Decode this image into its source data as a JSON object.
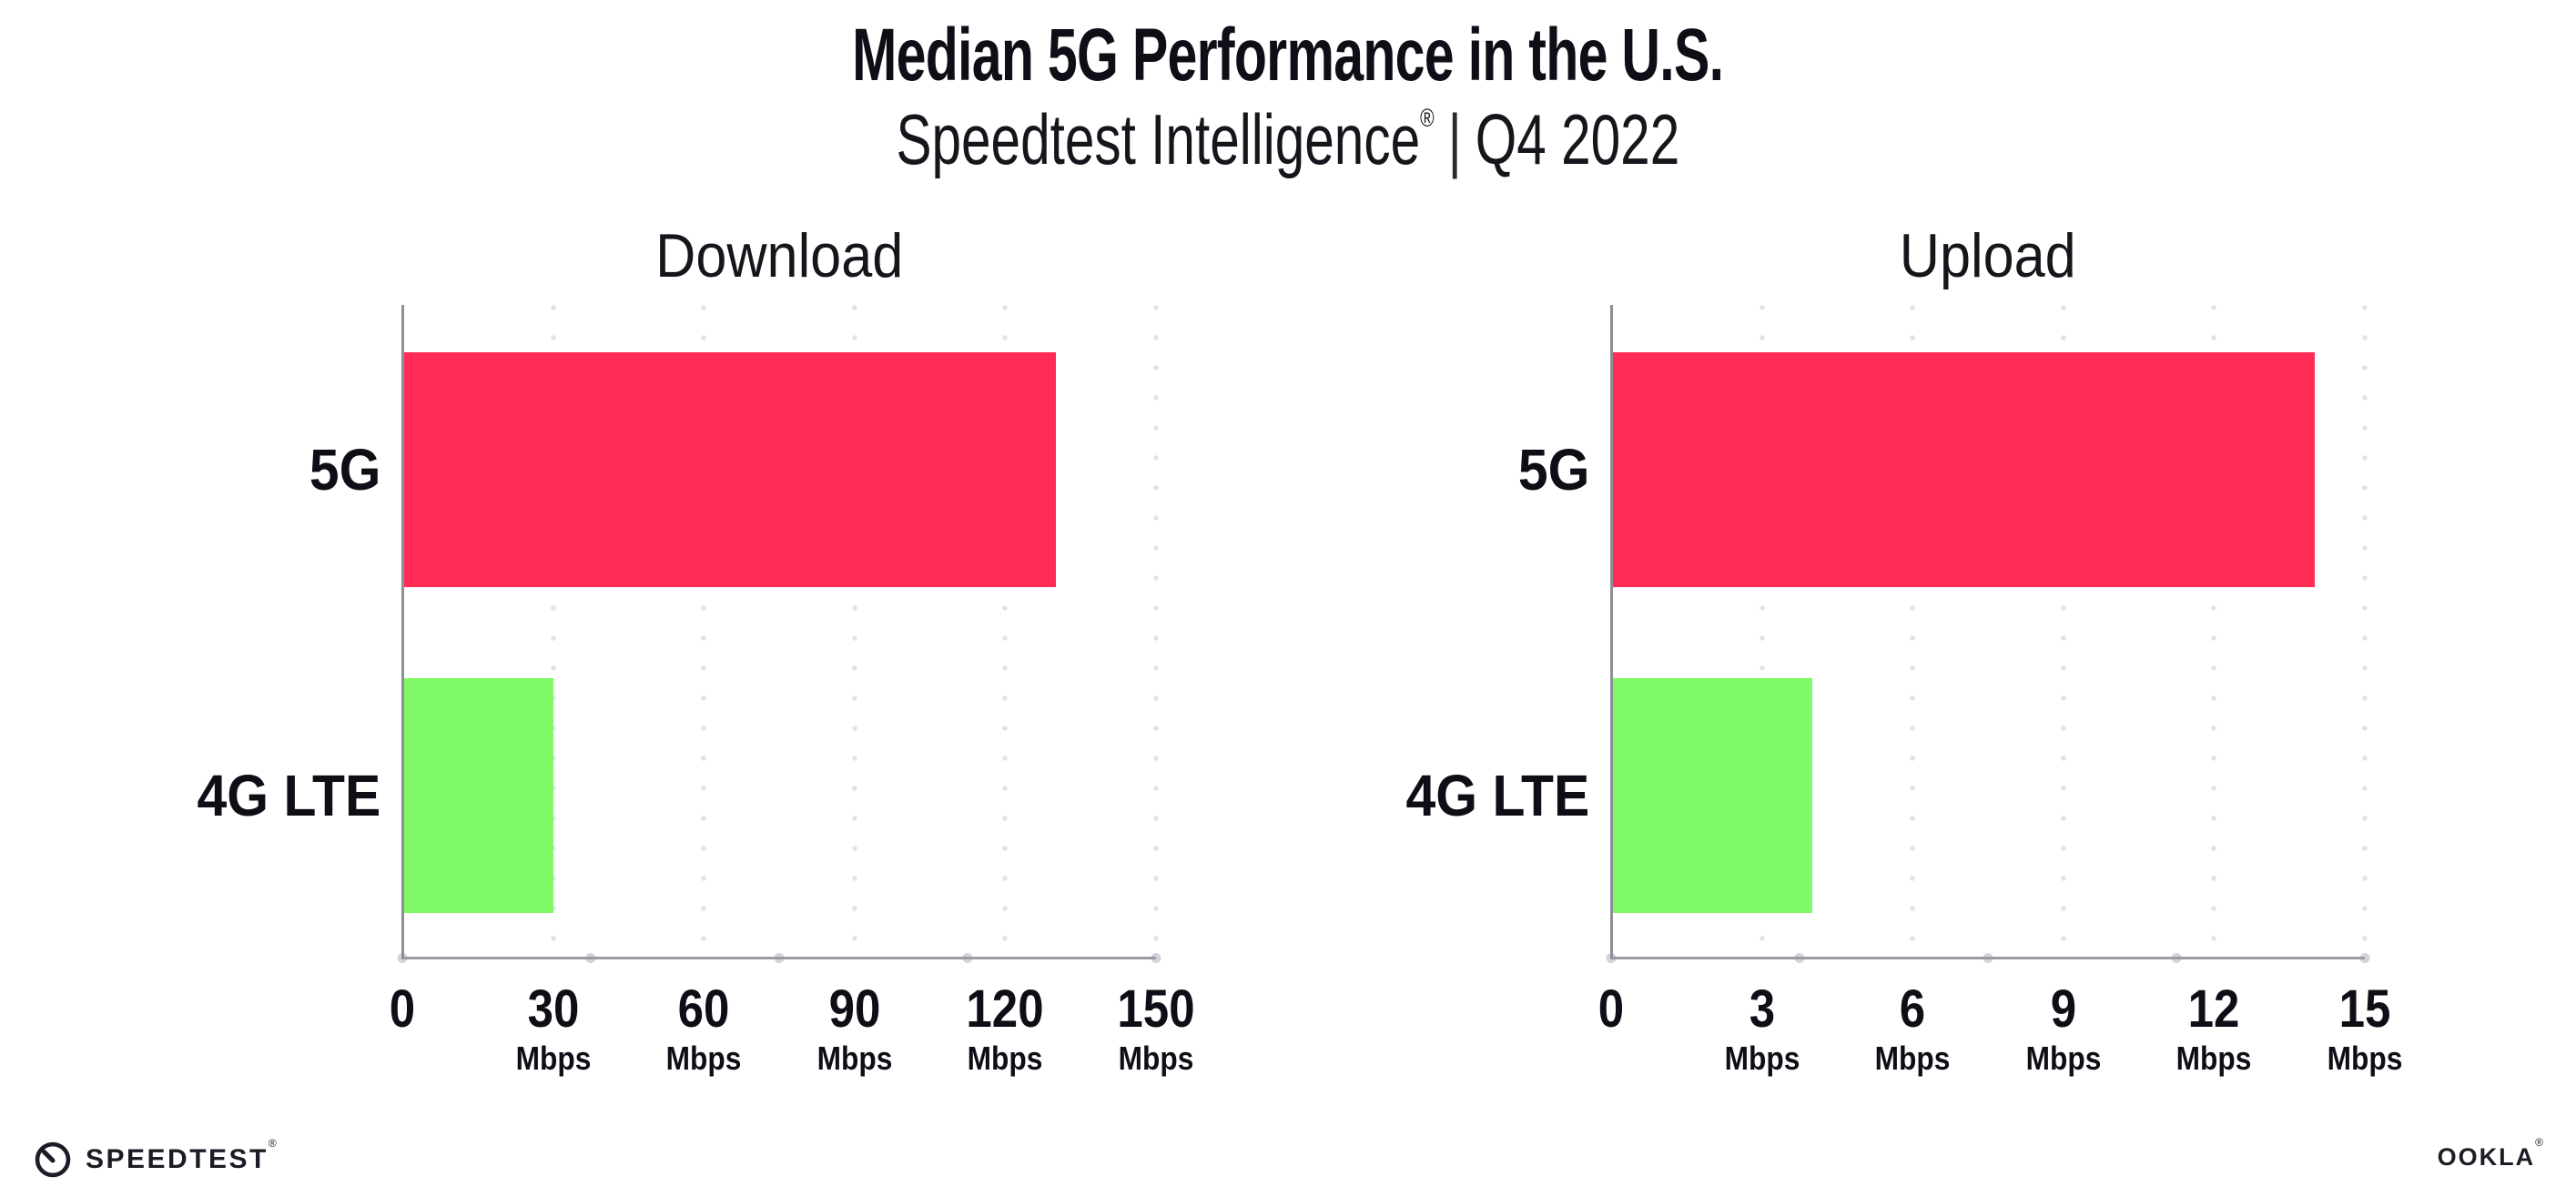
{
  "header": {
    "title": "Median 5G Performance in the U.S.",
    "subtitle_brand": "Speedtest Intelligence",
    "subtitle_reg": "®",
    "subtitle_sep": "|",
    "subtitle_period": "Q4 2022"
  },
  "colors": {
    "bar_5g": "#FF2D55",
    "bar_4g_lte": "#7FFA66",
    "axis": "#9B9BA3",
    "grid_dots": "#E1E1E9",
    "text": "#0E0E16"
  },
  "chart_data": [
    {
      "type": "bar",
      "orientation": "horizontal",
      "title": "Download",
      "categories": [
        "5G",
        "4G LTE"
      ],
      "values": [
        130,
        30
      ],
      "unit": "Mbps",
      "xlim": [
        0,
        150
      ],
      "xticks": [
        0,
        30,
        60,
        90,
        120,
        150
      ],
      "tick_unit_label": "Mbps",
      "bar_colors": [
        "#FF2D55",
        "#7FFA66"
      ],
      "grid": "dotted-vertical",
      "legend": "none"
    },
    {
      "type": "bar",
      "orientation": "horizontal",
      "title": "Upload",
      "categories": [
        "5G",
        "4G LTE"
      ],
      "values": [
        14,
        4
      ],
      "unit": "Mbps",
      "xlim": [
        0,
        15
      ],
      "xticks": [
        0,
        3,
        6,
        9,
        12,
        15
      ],
      "tick_unit_label": "Mbps",
      "bar_colors": [
        "#FF2D55",
        "#7FFA66"
      ],
      "grid": "dotted-vertical",
      "legend": "none"
    }
  ],
  "footer": {
    "speedtest_wordmark": "SPEEDTEST",
    "speedtest_reg": "®",
    "ookla_wordmark": "OOKLA",
    "ookla_reg": "®"
  }
}
